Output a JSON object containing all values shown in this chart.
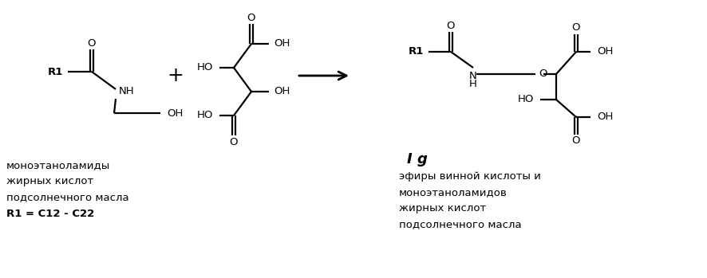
{
  "background_color": "#ffffff",
  "figure_width": 8.86,
  "figure_height": 3.49,
  "dpi": 100,
  "text_color": "#000000",
  "left_label_lines": [
    "моноэтаноламиды",
    "жирных кислот",
    "подсолнечного масла",
    "R1 = C12 - C22"
  ],
  "right_label_lines": [
    "эфиры винной кислоты и",
    "моноэтаноламидов",
    "жирных кислот",
    "подсолнечного масла"
  ],
  "label_Ig": "I g"
}
